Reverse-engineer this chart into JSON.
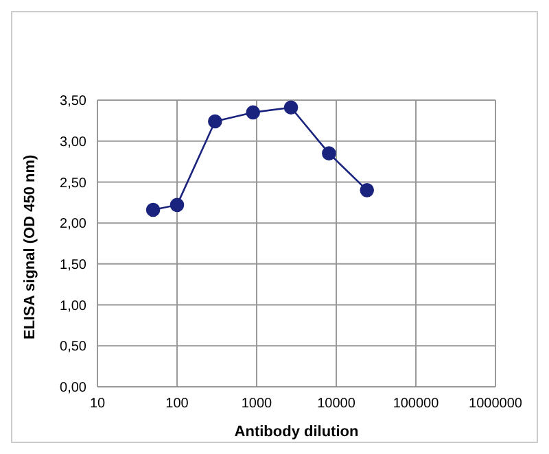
{
  "chart_data": {
    "type": "line",
    "xlabel": "Antibody dilution",
    "ylabel": "ELISA signal (OD 450 nm)",
    "x": [
      50,
      100,
      300,
      900,
      2700,
      8100,
      24300
    ],
    "series": [
      {
        "color": "#1a237e",
        "values": [
          2.16,
          2.22,
          3.24,
          3.35,
          3.41,
          2.85,
          2.4
        ]
      }
    ],
    "log": "x",
    "xlim": [
      10,
      1000000
    ],
    "xticks": [
      10,
      100,
      1000,
      10000,
      100000,
      1000000
    ],
    "ylim": [
      0,
      3.5
    ],
    "yticks": [
      {
        "value": 0,
        "label": "0,00"
      },
      {
        "value": 0.5,
        "label": "0,50"
      },
      {
        "value": 1,
        "label": "1,00"
      },
      {
        "value": 1.5,
        "label": "1,50"
      },
      {
        "value": 2,
        "label": "2,00"
      },
      {
        "value": 2.5,
        "label": "2,50"
      },
      {
        "value": 3,
        "label": "3,00"
      },
      {
        "value": 3.5,
        "label": "3,50"
      }
    ],
    "grid": true,
    "marker": "circle",
    "line_style": "solid",
    "legend": false
  }
}
